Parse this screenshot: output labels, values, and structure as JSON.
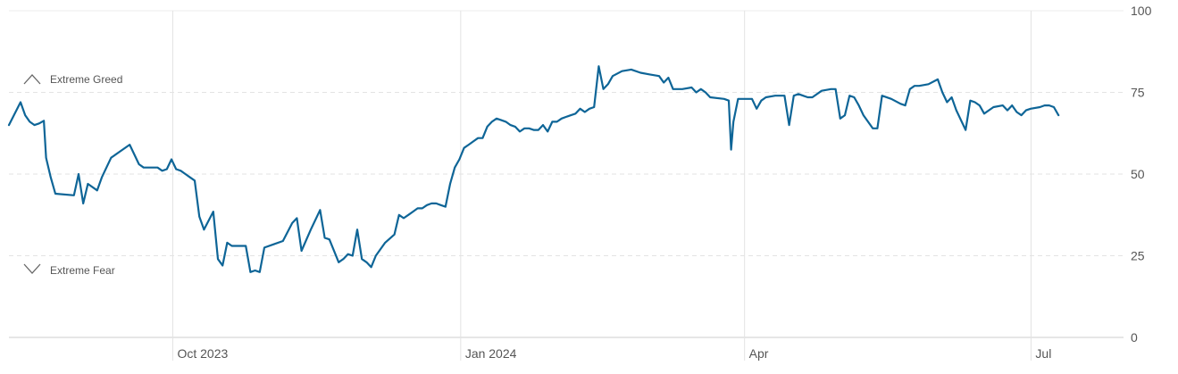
{
  "chart_data": {
    "type": "line",
    "title": "",
    "xlabel": "",
    "ylabel": "",
    "ylim": [
      0,
      100
    ],
    "y_ticks": [
      "0",
      "25",
      "50",
      "75",
      "100"
    ],
    "x_ticks": [
      {
        "label": "Oct 2023",
        "x": 0.147
      },
      {
        "label": "Jan 2024",
        "x": 0.4053
      },
      {
        "label": "Apr",
        "x": 0.66
      },
      {
        "label": "Jul",
        "x": 0.917
      }
    ],
    "bands": {
      "greed_label": "Extreme Greed",
      "fear_label": "Extreme Fear"
    },
    "grid": true,
    "line_color": "#0e6597",
    "series": [
      {
        "name": "",
        "points": [
          [
            0,
            65
          ],
          [
            0.0104,
            72
          ],
          [
            0.0146,
            68
          ],
          [
            0.0187,
            66
          ],
          [
            0.0229,
            65
          ],
          [
            0.0271,
            65.5
          ],
          [
            0.0313,
            66.3
          ],
          [
            0.0333,
            55
          ],
          [
            0.0375,
            49
          ],
          [
            0.0417,
            44
          ],
          [
            0.0583,
            43.5
          ],
          [
            0.0625,
            50
          ],
          [
            0.0667,
            41
          ],
          [
            0.0708,
            47
          ],
          [
            0.0792,
            45
          ],
          [
            0.0833,
            49
          ],
          [
            0.0917,
            55
          ],
          [
            0.1,
            57
          ],
          [
            0.1083,
            59
          ],
          [
            0.1167,
            53
          ],
          [
            0.1208,
            52
          ],
          [
            0.1333,
            52
          ],
          [
            0.1375,
            51
          ],
          [
            0.1417,
            51.5
          ],
          [
            0.1458,
            54.5
          ],
          [
            0.15,
            51.5
          ],
          [
            0.1542,
            51
          ],
          [
            0.1583,
            50
          ],
          [
            0.1625,
            49
          ],
          [
            0.1667,
            48
          ],
          [
            0.1708,
            37
          ],
          [
            0.175,
            33
          ],
          [
            0.1833,
            38.5
          ],
          [
            0.1875,
            24
          ],
          [
            0.1917,
            22
          ],
          [
            0.1958,
            29
          ],
          [
            0.2,
            28
          ],
          [
            0.2125,
            28
          ],
          [
            0.2167,
            20
          ],
          [
            0.2208,
            20.5
          ],
          [
            0.225,
            20
          ],
          [
            0.2292,
            27.5
          ],
          [
            0.2375,
            28.5
          ],
          [
            0.2458,
            29.5
          ],
          [
            0.2542,
            35
          ],
          [
            0.2583,
            36.5
          ],
          [
            0.2625,
            26.5
          ],
          [
            0.2708,
            33
          ],
          [
            0.2792,
            39
          ],
          [
            0.2833,
            30.5
          ],
          [
            0.2875,
            30
          ],
          [
            0.2958,
            23
          ],
          [
            0.3,
            24
          ],
          [
            0.3042,
            25.5
          ],
          [
            0.3083,
            25
          ],
          [
            0.3125,
            33
          ],
          [
            0.3167,
            24
          ],
          [
            0.3208,
            23
          ],
          [
            0.325,
            21.5
          ],
          [
            0.3292,
            25
          ],
          [
            0.3375,
            29
          ],
          [
            0.3458,
            31.5
          ],
          [
            0.35,
            37.5
          ],
          [
            0.3542,
            36.5
          ],
          [
            0.3583,
            37.5
          ],
          [
            0.3625,
            38.5
          ],
          [
            0.3667,
            39.5
          ],
          [
            0.3708,
            39.5
          ],
          [
            0.375,
            40.5
          ],
          [
            0.3792,
            41
          ],
          [
            0.3833,
            41
          ],
          [
            0.3875,
            40.5
          ],
          [
            0.3917,
            40
          ],
          [
            0.3958,
            47
          ],
          [
            0.4,
            52
          ],
          [
            0.4042,
            54.5
          ],
          [
            0.4083,
            58
          ],
          [
            0.4125,
            59
          ],
          [
            0.4167,
            60
          ],
          [
            0.4208,
            61
          ],
          [
            0.425,
            61
          ],
          [
            0.4292,
            64.5
          ],
          [
            0.4333,
            66
          ],
          [
            0.4375,
            67
          ],
          [
            0.4417,
            66.5
          ],
          [
            0.4458,
            66
          ],
          [
            0.45,
            65
          ],
          [
            0.4542,
            64.5
          ],
          [
            0.4583,
            63
          ],
          [
            0.4625,
            64
          ],
          [
            0.4667,
            64
          ],
          [
            0.4708,
            63.5
          ],
          [
            0.475,
            63.5
          ],
          [
            0.4792,
            65
          ],
          [
            0.4833,
            63
          ],
          [
            0.4875,
            66
          ],
          [
            0.4917,
            66
          ],
          [
            0.4958,
            67
          ],
          [
            0.5,
            67.5
          ],
          [
            0.5042,
            68
          ],
          [
            0.5083,
            68.5
          ],
          [
            0.5125,
            70
          ],
          [
            0.5167,
            69
          ],
          [
            0.5208,
            70
          ],
          [
            0.525,
            70.5
          ],
          [
            0.5292,
            83
          ],
          [
            0.5333,
            76
          ],
          [
            0.5375,
            77.5
          ],
          [
            0.5417,
            80
          ],
          [
            0.55,
            81.5
          ],
          [
            0.5583,
            82
          ],
          [
            0.5667,
            81
          ],
          [
            0.575,
            80.5
          ],
          [
            0.5833,
            80
          ],
          [
            0.5875,
            78
          ],
          [
            0.5917,
            79.5
          ],
          [
            0.5958,
            76
          ],
          [
            0.6042,
            76
          ],
          [
            0.6125,
            76.5
          ],
          [
            0.6167,
            75
          ],
          [
            0.6208,
            76
          ],
          [
            0.625,
            75
          ],
          [
            0.6292,
            73.5
          ],
          [
            0.6417,
            73
          ],
          [
            0.6458,
            72.5
          ],
          [
            0.6479,
            57.5
          ],
          [
            0.65,
            66
          ],
          [
            0.6542,
            73
          ],
          [
            0.6667,
            73
          ],
          [
            0.6708,
            70
          ],
          [
            0.675,
            72.5
          ],
          [
            0.6792,
            73.5
          ],
          [
            0.6875,
            74
          ],
          [
            0.6917,
            74
          ],
          [
            0.6958,
            74
          ],
          [
            0.7,
            65
          ],
          [
            0.7042,
            74
          ],
          [
            0.7083,
            74.5
          ],
          [
            0.7125,
            74
          ],
          [
            0.7167,
            73.5
          ],
          [
            0.7208,
            73.5
          ],
          [
            0.7292,
            75.5
          ],
          [
            0.7375,
            76
          ],
          [
            0.7417,
            76
          ],
          [
            0.7458,
            67
          ],
          [
            0.75,
            68
          ],
          [
            0.7542,
            74
          ],
          [
            0.7583,
            73.5
          ],
          [
            0.7625,
            71
          ],
          [
            0.7667,
            68
          ],
          [
            0.775,
            64
          ],
          [
            0.7792,
            64
          ],
          [
            0.7833,
            74
          ],
          [
            0.7917,
            73
          ],
          [
            0.8,
            71.5
          ],
          [
            0.8042,
            71
          ],
          [
            0.8083,
            76
          ],
          [
            0.8125,
            77
          ],
          [
            0.8167,
            77
          ],
          [
            0.825,
            77.5
          ],
          [
            0.8333,
            79
          ],
          [
            0.8375,
            75
          ],
          [
            0.8417,
            72
          ],
          [
            0.8458,
            73.5
          ],
          [
            0.85,
            69.5
          ],
          [
            0.8583,
            63.5
          ],
          [
            0.8625,
            72.5
          ],
          [
            0.8667,
            72
          ],
          [
            0.8708,
            71
          ],
          [
            0.875,
            68.5
          ],
          [
            0.8792,
            69.5
          ],
          [
            0.8833,
            70.5
          ],
          [
            0.8917,
            71
          ],
          [
            0.8958,
            69.5
          ],
          [
            0.9,
            71
          ],
          [
            0.9042,
            69
          ],
          [
            0.9083,
            68
          ],
          [
            0.9125,
            69.5
          ],
          [
            0.9167,
            70
          ],
          [
            0.925,
            70.5
          ],
          [
            0.9292,
            71
          ],
          [
            0.9333,
            71
          ],
          [
            0.9375,
            70.5
          ],
          [
            0.9417,
            68
          ]
        ]
      }
    ]
  }
}
